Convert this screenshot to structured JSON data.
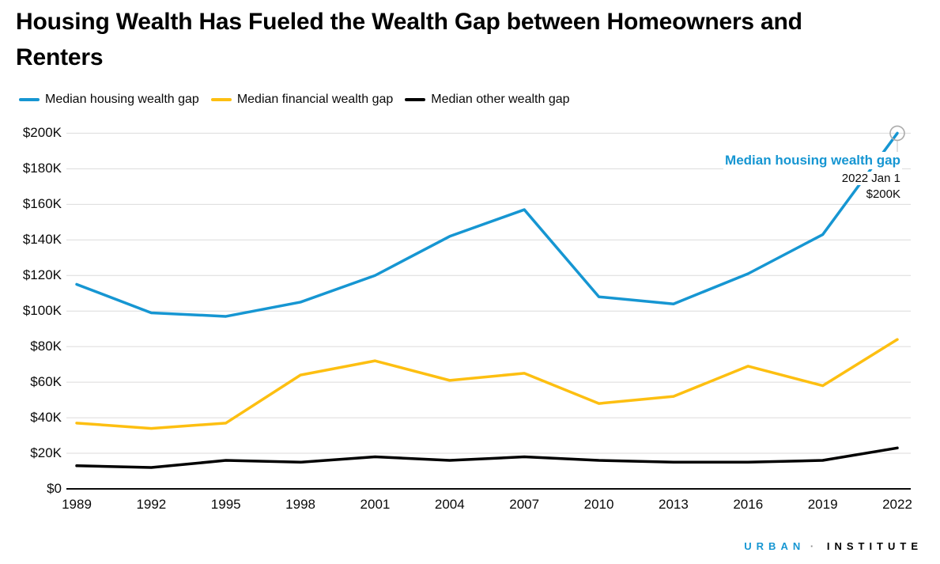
{
  "title": {
    "line1": "Housing Wealth Has Fueled the Wealth Gap between Homeowners and",
    "line2": "Renters"
  },
  "legend": [
    {
      "label": "Median housing wealth gap",
      "color": "#1696d2"
    },
    {
      "label": "Median financial wealth gap",
      "color": "#fdbf11"
    },
    {
      "label": "Median other wealth gap",
      "color": "#000000"
    }
  ],
  "tooltip": {
    "series_label": "Median housing wealth gap",
    "date": "2022 Jan 1",
    "value": "$200K",
    "x_index": 11,
    "series_index": 0
  },
  "footer": {
    "brand_word1": "URBAN",
    "separator": "·",
    "brand_word2": "INSTITUTE"
  },
  "colors": {
    "accent_blue": "#1696d2",
    "accent_yellow": "#fdbf11",
    "line_black": "#000000",
    "gridline": "#dcdbdb",
    "axis": "#0a0a0a",
    "marker_stroke": "#ababab",
    "connector": "#c9c9c9"
  },
  "chart_data": {
    "type": "line",
    "title": "Housing Wealth Has Fueled the Wealth Gap between Homeowners and Renters",
    "unit": "USD thousands",
    "x": [
      1989,
      1992,
      1995,
      1998,
      2001,
      2004,
      2007,
      2010,
      2013,
      2016,
      2019,
      2022
    ],
    "x_tick_labels": [
      "1989",
      "1992",
      "1995",
      "1998",
      "2001",
      "2004",
      "2007",
      "2010",
      "2013",
      "2016",
      "2019",
      "2022"
    ],
    "y_ticks": {
      "values": [
        0,
        20,
        40,
        60,
        80,
        100,
        120,
        140,
        160,
        180,
        200
      ],
      "labels": [
        "$0",
        "$20K",
        "$40K",
        "$60K",
        "$80K",
        "$100K",
        "$120K",
        "$140K",
        "$160K",
        "$180K",
        "$200K"
      ]
    },
    "ylim": [
      0,
      200
    ],
    "grid": "horizontal",
    "legend_position": "top-left",
    "series": [
      {
        "name": "Median housing wealth gap",
        "color": "#1696d2",
        "values": [
          115,
          99,
          97,
          105,
          120,
          142,
          157,
          108,
          104,
          121,
          143,
          200
        ]
      },
      {
        "name": "Median financial wealth gap",
        "color": "#fdbf11",
        "values": [
          37,
          34,
          37,
          64,
          72,
          61,
          65,
          48,
          52,
          69,
          58,
          84
        ]
      },
      {
        "name": "Median other wealth gap",
        "color": "#000000",
        "values": [
          13,
          12,
          16,
          15,
          18,
          16,
          18,
          16,
          15,
          15,
          16,
          23
        ]
      }
    ],
    "annotation": {
      "text": "Median housing wealth gap",
      "date": "2022 Jan 1",
      "value": "$200K",
      "point": {
        "x": 2022,
        "series": "Median housing wealth gap",
        "y": 200
      }
    }
  }
}
